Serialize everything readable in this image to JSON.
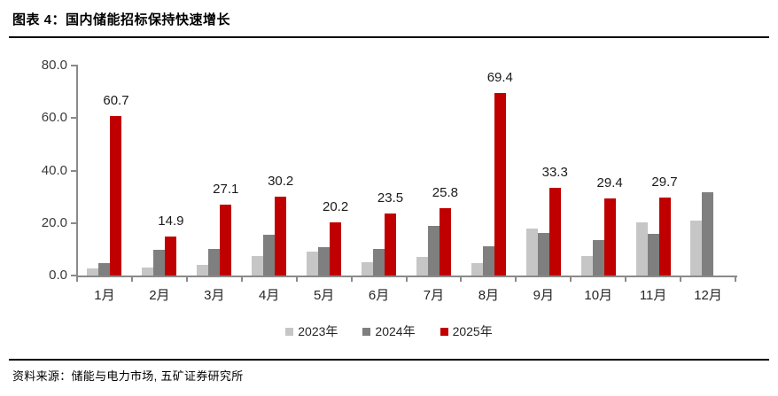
{
  "header": {
    "title": "图表 4：国内储能招标保持快速增长"
  },
  "footer": {
    "source": "资料来源：储能与电力市场, 五矿证券研究所"
  },
  "colors": {
    "red_2025": "#C00000",
    "light_gray_2023": "#C6C6C6",
    "dark_gray_2024": "#7F7F7F",
    "axis": "#8a8a8a",
    "rule": "#000000"
  },
  "chart_data": {
    "type": "bar",
    "title": "图表 4：国内储能招标保持快速增长",
    "categories": [
      "1月",
      "2月",
      "3月",
      "4月",
      "5月",
      "6月",
      "7月",
      "8月",
      "9月",
      "10月",
      "11月",
      "12月"
    ],
    "series": [
      {
        "name": "2023年",
        "color": "#C6C6C6",
        "values": [
          2.7,
          3.2,
          4.0,
          7.4,
          9.0,
          5.0,
          7.0,
          4.8,
          18.0,
          7.4,
          20.3,
          21.0
        ],
        "data_labels": false
      },
      {
        "name": "2024年",
        "color": "#7F7F7F",
        "values": [
          4.8,
          9.7,
          10.3,
          15.5,
          10.8,
          10.0,
          18.9,
          11.1,
          16.2,
          13.4,
          16.0,
          31.9
        ],
        "data_labels": false
      },
      {
        "name": "2025年",
        "color": "#C00000",
        "values": [
          60.7,
          14.9,
          27.1,
          30.2,
          20.2,
          23.5,
          25.8,
          69.4,
          33.3,
          29.4,
          29.7,
          null
        ],
        "data_labels": true
      }
    ],
    "ylim": [
      0,
      80
    ],
    "yticks": [
      "0.0",
      "20.0",
      "40.0",
      "60.0",
      "80.0"
    ],
    "xlabel": "",
    "ylabel": "",
    "grid": false,
    "legend_position": "bottom"
  }
}
